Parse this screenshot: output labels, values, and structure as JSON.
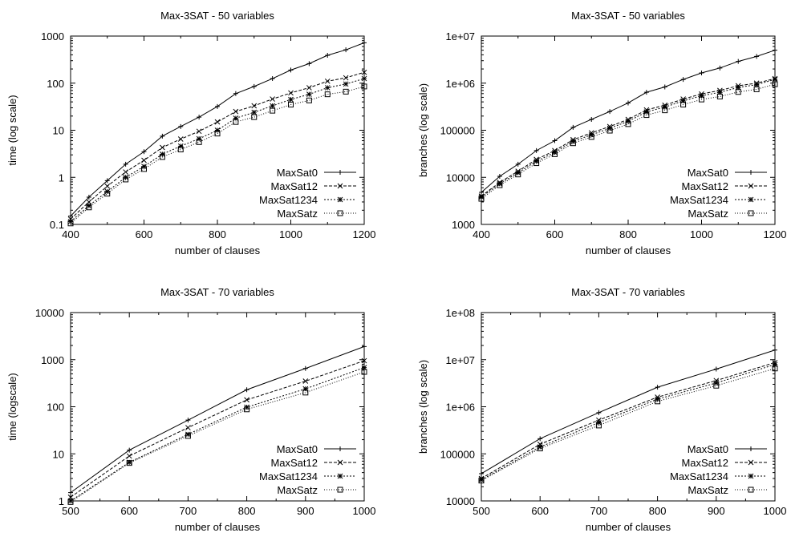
{
  "chart_data": [
    {
      "type": "line",
      "title": "Max-3SAT - 50 variables",
      "xlabel": "number of clauses",
      "ylabel": "time (log scale)",
      "xlim": [
        400,
        1200
      ],
      "ylim": [
        0.1,
        1000
      ],
      "yscale": "log",
      "xticks": [
        "400",
        "600",
        "800",
        "1000",
        "1200"
      ],
      "yticks": [
        "0.1",
        "1",
        "10",
        "100",
        "1000"
      ],
      "legend_position": "bottom-right",
      "x": [
        400,
        450,
        500,
        550,
        600,
        650,
        700,
        750,
        800,
        850,
        900,
        950,
        1000,
        1050,
        1100,
        1150,
        1200
      ],
      "series": [
        {
          "name": "MaxSat0",
          "marker": "plus",
          "dash": "",
          "values": [
            0.15,
            0.38,
            0.85,
            1.9,
            3.5,
            7.5,
            12,
            19,
            32,
            60,
            85,
            125,
            190,
            260,
            390,
            510,
            720
          ]
        },
        {
          "name": "MaxSat12",
          "marker": "x",
          "dash": "4,2",
          "values": [
            0.13,
            0.3,
            0.65,
            1.3,
            2.3,
            4.3,
            6.5,
            9.5,
            15,
            25,
            33,
            46,
            62,
            80,
            110,
            130,
            170
          ]
        },
        {
          "name": "MaxSat1234",
          "marker": "star",
          "dash": "2,2",
          "values": [
            0.115,
            0.25,
            0.5,
            1.0,
            1.7,
            3.1,
            4.6,
            6.6,
            10,
            18,
            24,
            33,
            45,
            58,
            80,
            96,
            125
          ]
        },
        {
          "name": "MaxSatz",
          "marker": "box",
          "dash": "1,2",
          "values": [
            0.105,
            0.23,
            0.45,
            0.9,
            1.5,
            2.7,
            3.9,
            5.6,
            8.5,
            15,
            19,
            26,
            35,
            43,
            58,
            66,
            85
          ]
        }
      ]
    },
    {
      "type": "line",
      "title": "Max-3SAT - 50 variables",
      "xlabel": "number of clauses",
      "ylabel": "branches (log scale)",
      "xlim": [
        400,
        1200
      ],
      "ylim": [
        1000,
        10000000
      ],
      "yscale": "log",
      "xticks": [
        "400",
        "600",
        "800",
        "1000",
        "1200"
      ],
      "yticks": [
        "1000",
        "10000",
        "100000",
        "1e+06",
        "1e+07"
      ],
      "legend_position": "bottom-right",
      "x": [
        400,
        450,
        500,
        550,
        600,
        650,
        700,
        750,
        800,
        850,
        900,
        950,
        1000,
        1050,
        1100,
        1150,
        1200
      ],
      "series": [
        {
          "name": "MaxSat0",
          "marker": "plus",
          "dash": "",
          "values": [
            4800,
            10500,
            19000,
            37000,
            60000,
            115000,
            170000,
            250000,
            380000,
            640000,
            830000,
            1200000,
            1650000,
            2100000,
            2900000,
            3700000,
            5000000
          ]
        },
        {
          "name": "MaxSat12",
          "marker": "x",
          "dash": "4,2",
          "values": [
            4000,
            7800,
            13500,
            24000,
            37000,
            63000,
            88000,
            120000,
            170000,
            270000,
            340000,
            460000,
            590000,
            700000,
            880000,
            1000000,
            1250000
          ]
        },
        {
          "name": "MaxSat1234",
          "marker": "star",
          "dash": "2,2",
          "values": [
            3800,
            7300,
            12500,
            22000,
            34000,
            58000,
            80000,
            110000,
            155000,
            245000,
            310000,
            420000,
            540000,
            640000,
            810000,
            930000,
            1200000
          ]
        },
        {
          "name": "MaxSatz",
          "marker": "box",
          "dash": "1,2",
          "values": [
            3500,
            6800,
            11500,
            20000,
            31000,
            53000,
            72000,
            98000,
            135000,
            210000,
            265000,
            350000,
            450000,
            520000,
            650000,
            740000,
            950000
          ]
        }
      ]
    },
    {
      "type": "line",
      "title": "Max-3SAT - 70 variables",
      "xlabel": "number of clauses",
      "ylabel": "time (logscale)",
      "xlim": [
        500,
        1000
      ],
      "ylim": [
        1,
        10000
      ],
      "yscale": "log",
      "xticks": [
        "500",
        "600",
        "700",
        "800",
        "900",
        "1000"
      ],
      "yticks": [
        "1",
        "10",
        "100",
        "1000",
        "10000"
      ],
      "legend_position": "bottom-right",
      "x": [
        500,
        600,
        700,
        800,
        900,
        1000
      ],
      "series": [
        {
          "name": "MaxSat0",
          "marker": "plus",
          "dash": "",
          "values": [
            1.5,
            12,
            52,
            230,
            650,
            1900
          ]
        },
        {
          "name": "MaxSat12",
          "marker": "x",
          "dash": "4,2",
          "values": [
            1.2,
            9,
            36,
            140,
            350,
            950
          ]
        },
        {
          "name": "MaxSat1234",
          "marker": "star",
          "dash": "2,2",
          "values": [
            1.0,
            6.6,
            26,
            98,
            240,
            680
          ]
        },
        {
          "name": "MaxSatz",
          "marker": "box",
          "dash": "1,2",
          "values": [
            0.95,
            6.4,
            24,
            88,
            200,
            550
          ]
        }
      ]
    },
    {
      "type": "line",
      "title": "Max-3SAT - 70 variables",
      "xlabel": "number of clauses",
      "ylabel": "branches (log scale)",
      "xlim": [
        500,
        1000
      ],
      "ylim": [
        10000,
        100000000
      ],
      "yscale": "log",
      "xticks": [
        "500",
        "600",
        "700",
        "800",
        "900",
        "1000"
      ],
      "yticks": [
        "10000",
        "100000",
        "1e+06",
        "1e+07",
        "1e+08"
      ],
      "legend_position": "bottom-right",
      "x": [
        500,
        600,
        700,
        800,
        900,
        1000
      ],
      "series": [
        {
          "name": "MaxSat0",
          "marker": "plus",
          "dash": "",
          "values": [
            38000,
            210000,
            750000,
            2600000,
            6300000,
            16000000
          ]
        },
        {
          "name": "MaxSat12",
          "marker": "x",
          "dash": "4,2",
          "values": [
            30000,
            160000,
            520000,
            1600000,
            3600000,
            8700000
          ]
        },
        {
          "name": "MaxSat1234",
          "marker": "star",
          "dash": "2,2",
          "values": [
            28000,
            140000,
            460000,
            1450000,
            3200000,
            7900000
          ]
        },
        {
          "name": "MaxSatz",
          "marker": "box",
          "dash": "1,2",
          "values": [
            27000,
            130000,
            400000,
            1300000,
            2800000,
            6500000
          ]
        }
      ]
    }
  ]
}
